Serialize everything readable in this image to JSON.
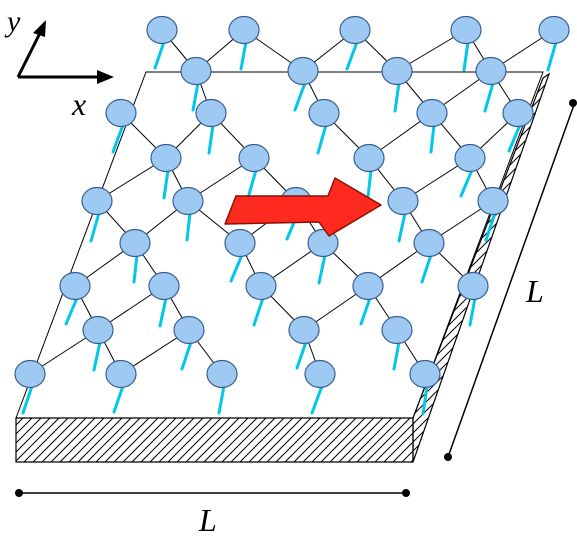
{
  "axes": {
    "x_label": "x",
    "y_label": "y"
  },
  "dimensions": {
    "bottom_length_label": "L",
    "side_length_label": "L"
  },
  "colors": {
    "node_fill": "#9ec9f3",
    "node_stroke": "#3a5f8f",
    "pin_color": "#00c8e8",
    "bond_color": "#000000",
    "arrow_fill": "#ff2a1f",
    "arrow_stroke": "#8a1000",
    "hatch_color": "#000000"
  },
  "icons": {
    "axis_icon": "xy-axis-icon",
    "motion_icon": "right-arrow-icon"
  }
}
